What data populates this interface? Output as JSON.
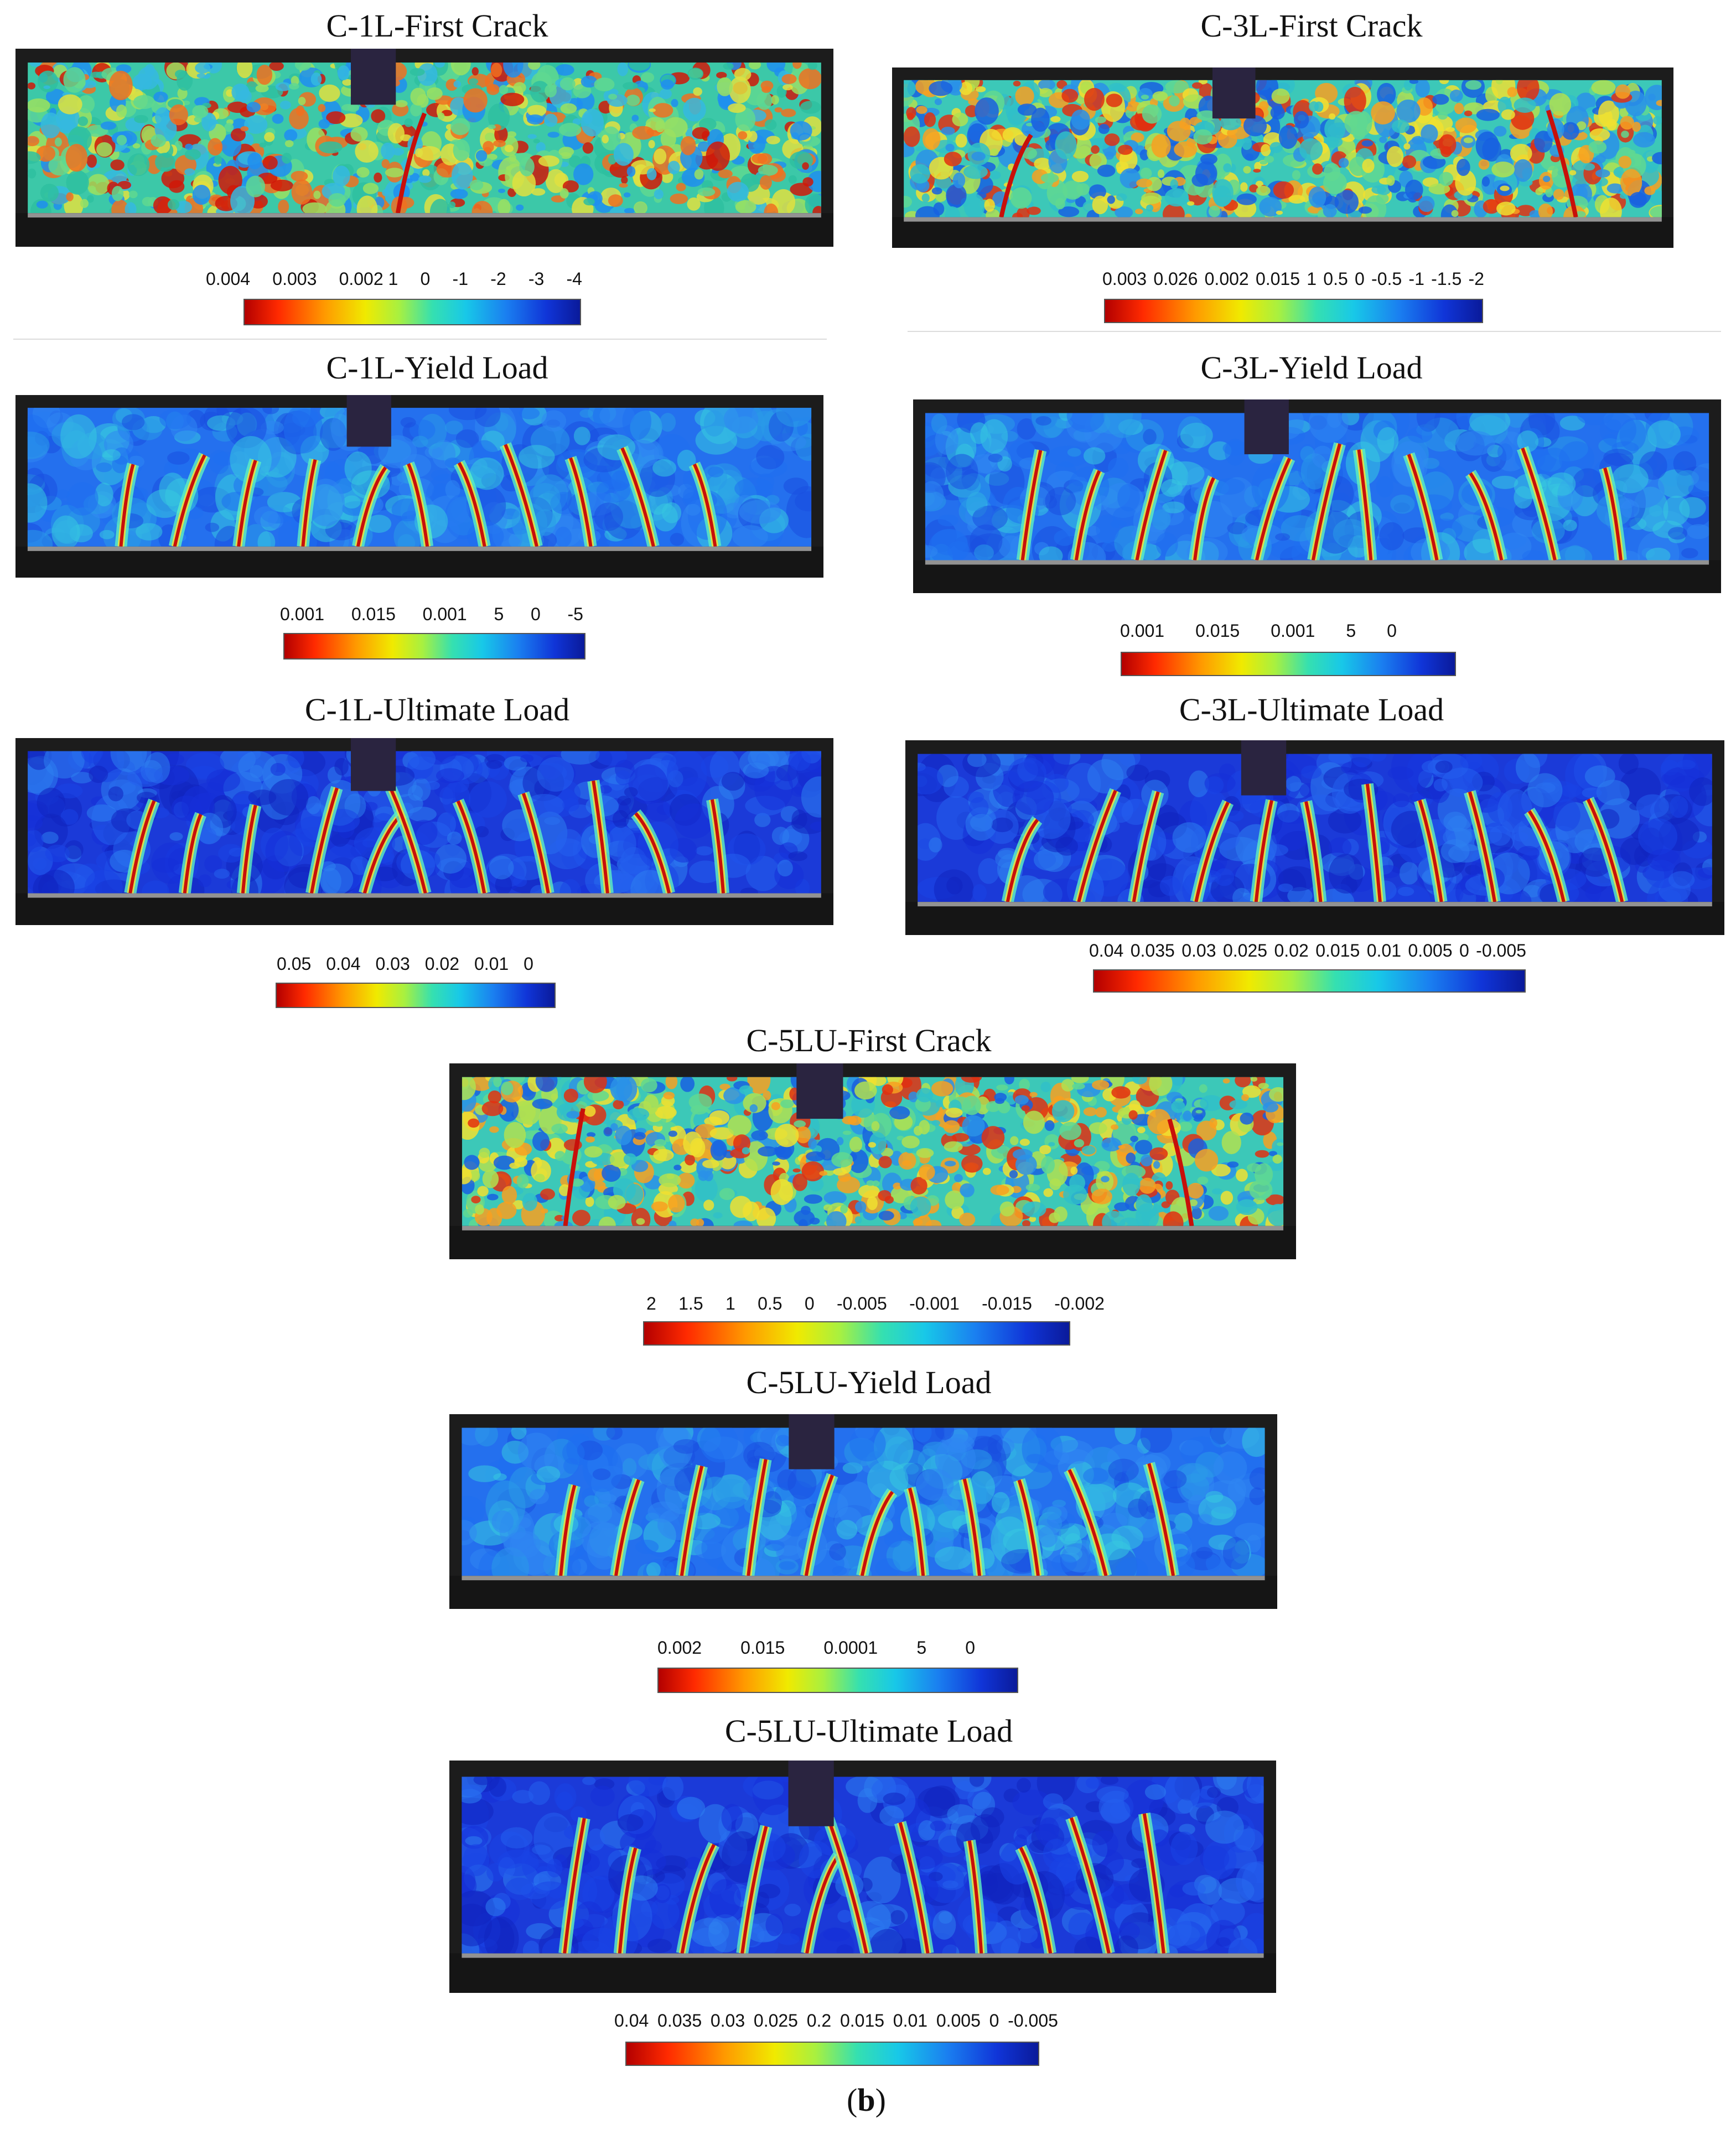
{
  "panels": [
    {
      "id": "c1l-first",
      "title": "C-1L-First Crack",
      "variant": "first",
      "scale": [
        "0.004",
        "0.003",
        "0.002 1",
        "0",
        "-1",
        "-2",
        "-3",
        "-4"
      ]
    },
    {
      "id": "c3l-first",
      "title": "C-3L-First Crack",
      "variant": "first-warm",
      "scale": [
        "0.003",
        "0.026",
        "0.002",
        "0.015",
        "1",
        "0.5",
        "0",
        "-0.5",
        "-1",
        "-1.5",
        "-2"
      ]
    },
    {
      "id": "c1l-yield",
      "title": "C-1L-Yield Load",
      "variant": "yield",
      "scale": [
        "0.001",
        "0.015",
        "0.001",
        "5",
        "0",
        "-5"
      ]
    },
    {
      "id": "c3l-yield",
      "title": "C-3L-Yield Load",
      "variant": "yield",
      "scale": [
        "0.001",
        "0.015",
        "0.001",
        "5",
        "0"
      ]
    },
    {
      "id": "c1l-ult",
      "title": "C-1L-Ultimate Load",
      "variant": "ultimate",
      "scale": [
        "0.05",
        "0.04",
        "0.03",
        "0.02",
        "0.01",
        "0"
      ]
    },
    {
      "id": "c3l-ult",
      "title": "C-3L-Ultimate Load",
      "variant": "ultimate",
      "scale": [
        "0.04",
        "0.035",
        "0.03",
        "0.025",
        "0.02",
        "0.015",
        "0.01",
        "0.005",
        "0",
        "-0.005"
      ]
    },
    {
      "id": "c5lu-first",
      "title": "C-5LU-First Crack",
      "variant": "first-warm",
      "scale": [
        "2",
        "1.5",
        "1",
        "0.5",
        "0",
        "-0.005",
        "-0.001",
        "-0.015",
        "-0.002"
      ]
    },
    {
      "id": "c5lu-yield",
      "title": "C-5LU-Yield Load",
      "variant": "yield",
      "scale": [
        "0.002",
        "0.015",
        "0.0001",
        "5",
        "0"
      ]
    },
    {
      "id": "c5lu-ult",
      "title": "C-5LU-Ultimate Load",
      "variant": "ultimate",
      "scale": [
        "0.04",
        "0.035",
        "0.03",
        "0.025",
        "0.2",
        "0.015",
        "0.01",
        "0.005",
        "0",
        "-0.005"
      ]
    }
  ],
  "figure_label": {
    "open": "(",
    "letter": "b",
    "close": ")"
  },
  "colors": {
    "crack_red": "#c8100a",
    "field_blue": "#1e3fd8",
    "field_deep_blue": "#0d24c0",
    "field_green": "#3fd0a0",
    "field_yellow": "#e8e030",
    "frame_dark": "#1a1a1a"
  }
}
